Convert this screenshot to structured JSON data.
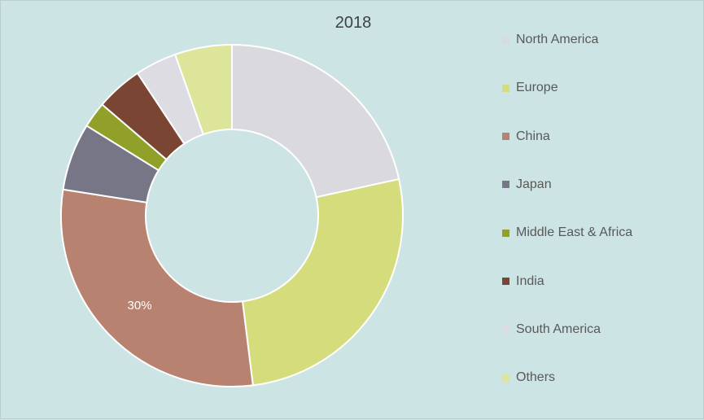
{
  "chart_data": {
    "type": "pie",
    "title": "2018",
    "donut": true,
    "legend_position": "right",
    "categories": [
      "North America",
      "Europe",
      "China",
      "Japan",
      "Middle East & Africa",
      "India",
      "South America",
      "Others"
    ],
    "values": [
      22,
      27,
      30,
      6.5,
      2.5,
      4.5,
      4,
      5.5
    ],
    "data_labels": [
      "",
      "",
      "30%",
      "",
      "",
      "",
      "",
      ""
    ],
    "colors": [
      "#d9d9de",
      "#d5dc7c",
      "#b88270",
      "#767687",
      "#90a028",
      "#7a4633",
      "#dcdce2",
      "#dce59a"
    ]
  }
}
